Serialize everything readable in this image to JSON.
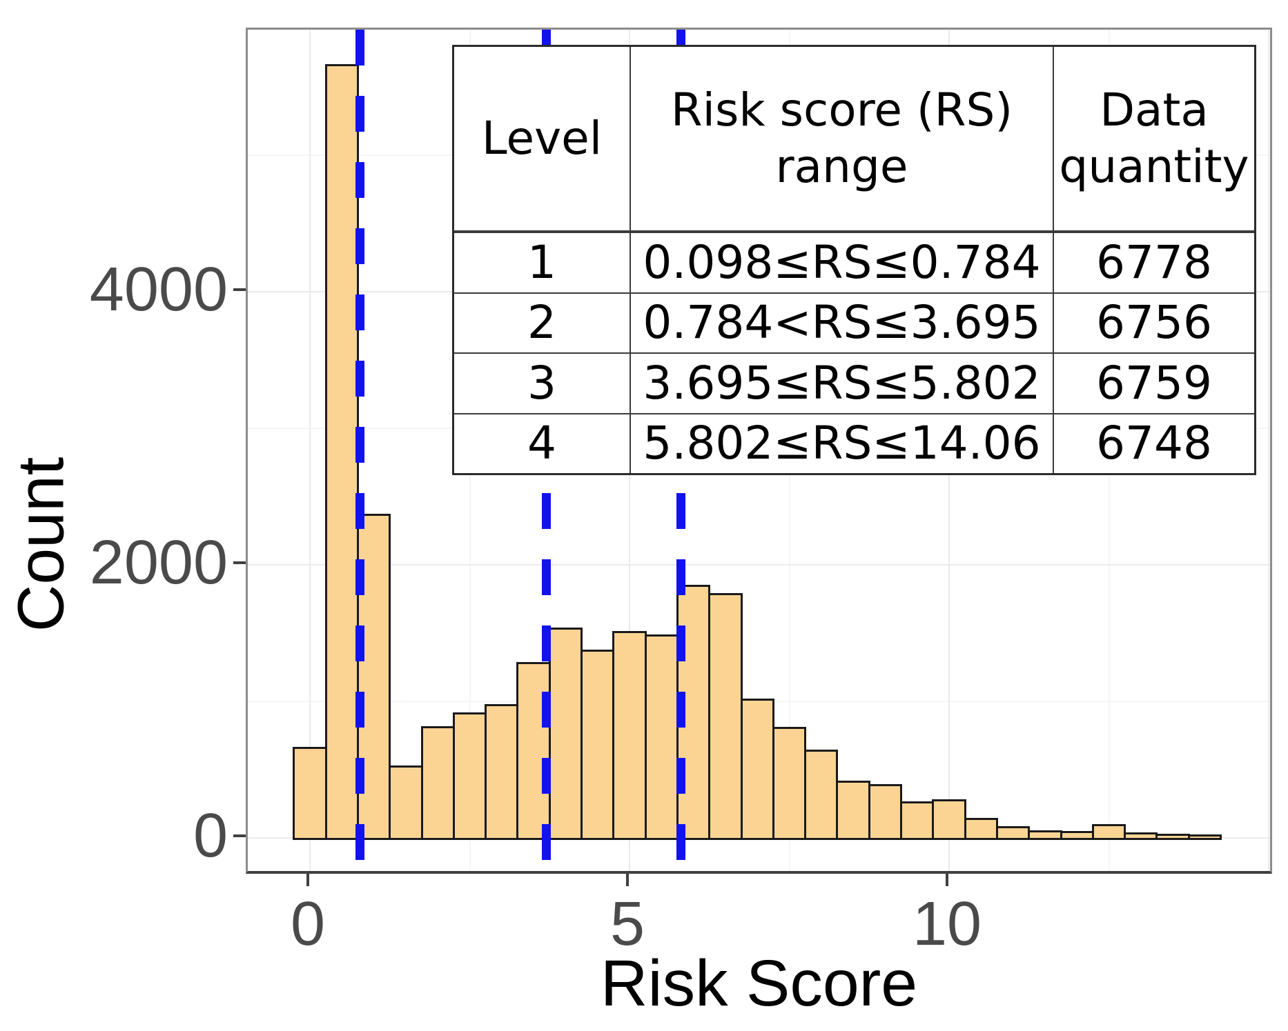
{
  "axes": {
    "x_title": "Risk Score",
    "y_title": "Count",
    "x_ticks": [
      {
        "v": 0,
        "label": "0"
      },
      {
        "v": 5,
        "label": "5"
      },
      {
        "v": 10,
        "label": "10"
      }
    ],
    "y_ticks": [
      {
        "v": 0,
        "label": "0"
      },
      {
        "v": 2000,
        "label": "2000"
      },
      {
        "v": 4000,
        "label": "4000"
      }
    ],
    "x_major_gridlines": [
      0,
      5,
      10,
      15
    ],
    "x_minor_gridlines": [
      2.5,
      7.5,
      12.5
    ],
    "y_major_gridlines": [
      0,
      2000,
      4000
    ],
    "y_minor_gridlines": [
      1000,
      3000,
      5000
    ]
  },
  "chart_data": {
    "type": "bar",
    "subtype": "histogram",
    "title": "",
    "xlabel": "Risk Score",
    "ylabel": "Count",
    "xlim": [
      -0.97,
      15.09
    ],
    "ylim": [
      0,
      5920
    ],
    "grid": "on",
    "legend": "none",
    "bin_start": -0.25,
    "bin_width": 0.5,
    "counts": [
      650,
      5650,
      2360,
      515,
      805,
      905,
      965,
      1275,
      1525,
      1365,
      1500,
      1475,
      1840,
      1780,
      1005,
      800,
      630,
      405,
      380,
      255,
      270,
      130,
      70,
      40,
      35,
      85,
      25,
      15,
      10
    ],
    "threshold_lines_x": [
      0.784,
      3.695,
      5.802
    ]
  },
  "table": {
    "headers": [
      [
        "Level"
      ],
      [
        "Risk score (RS)",
        "range"
      ],
      [
        "Data",
        "quantity"
      ]
    ],
    "rows": [
      [
        "1",
        "0.098≤RS≤0.784",
        "6778"
      ],
      [
        "2",
        "0.784<RS≤3.695",
        "6756"
      ],
      [
        "3",
        "3.695≤RS≤5.802",
        "6759"
      ],
      [
        "4",
        "5.802≤RS≤14.06",
        "6748"
      ]
    ]
  },
  "colors": {
    "bar_fill": "#FBD494",
    "bar_stroke": "#1A1A1A",
    "threshold_blue": "#1212EF",
    "grid_major": "#EBEBEB",
    "grid_minor": "#F5F5F5",
    "tick_text": "#4A4A4A",
    "panel_border": "#8C8C8C",
    "axis_line": "#404040",
    "table_border": "#2B2B2B"
  }
}
